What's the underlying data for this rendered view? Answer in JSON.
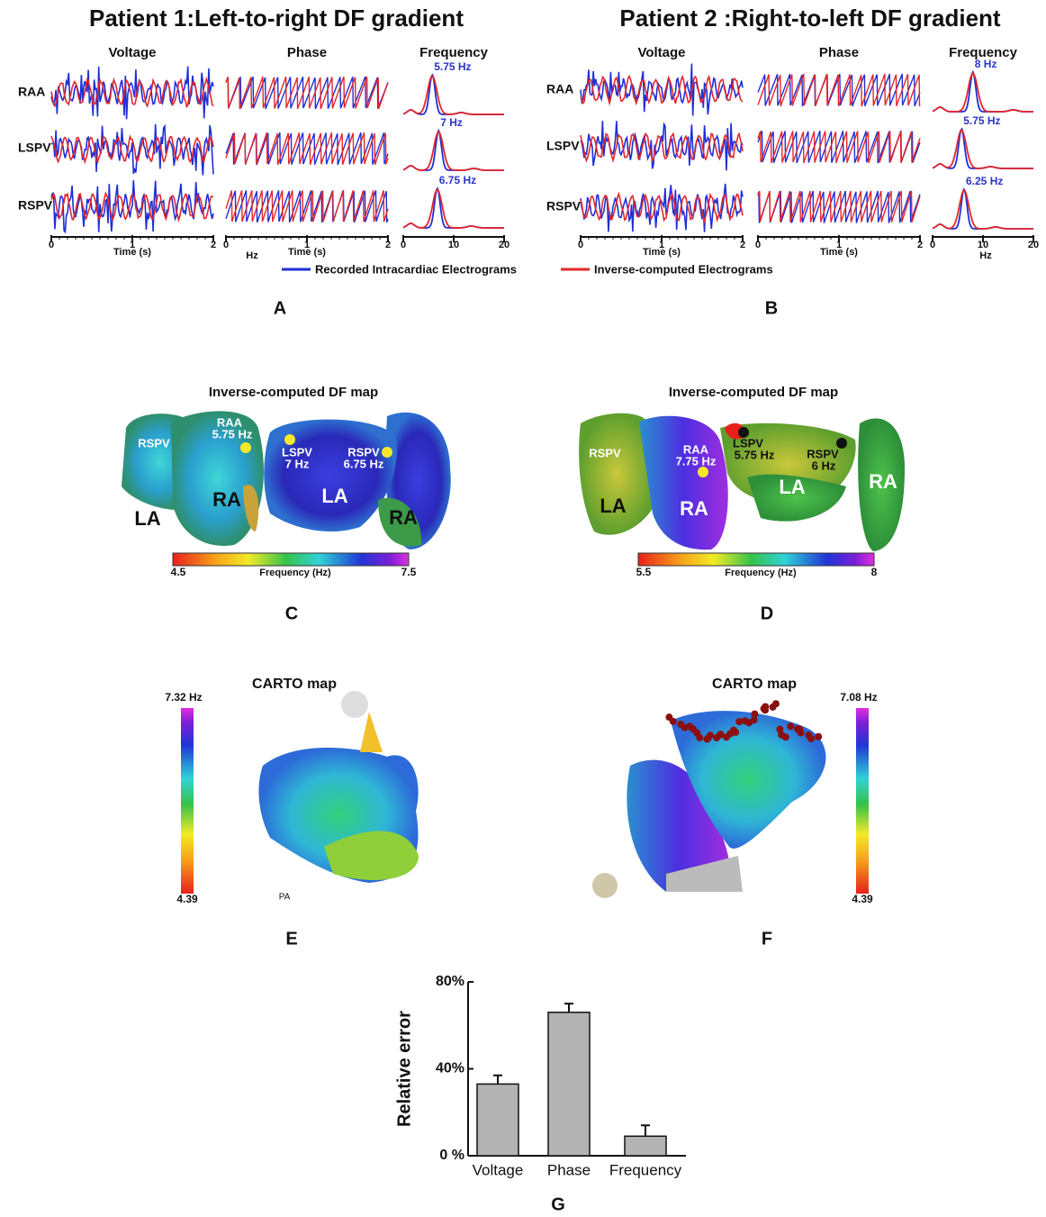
{
  "figure": {
    "patient1": {
      "title": "Patient 1:Left-to-right DF gradient",
      "letter": "A",
      "columns": [
        "Voltage",
        "Phase",
        "Frequency"
      ],
      "rows": [
        "RAA",
        "LSPV",
        "RSPV"
      ],
      "peaks": [
        5.75,
        7,
        6.75
      ],
      "peak_labels": [
        "5.75 Hz",
        "7 Hz",
        "6.75 Hz"
      ],
      "time_xlim": [
        0,
        2
      ],
      "time_xticks": [
        0,
        1,
        2
      ],
      "freq_xlim": [
        0,
        20
      ],
      "freq_xticks": [
        0,
        10,
        20
      ],
      "time_label": "Time (s)",
      "hz_label": "Hz"
    },
    "patient2": {
      "title": "Patient 2 :Right-to-left DF gradient",
      "letter": "B",
      "columns": [
        "Voltage",
        "Phase",
        "Frequency"
      ],
      "rows": [
        "RAA",
        "LSPV",
        "RSPV"
      ],
      "peaks": [
        8,
        5.75,
        6.25
      ],
      "peak_labels": [
        "8 Hz",
        "5.75 Hz",
        "6.25 Hz"
      ],
      "time_xlim": [
        0,
        2
      ],
      "time_xticks": [
        0,
        1,
        2
      ],
      "freq_xlim": [
        0,
        20
      ],
      "freq_xticks": [
        0,
        10,
        20
      ],
      "time_label": "Time (s)",
      "hz_label": "Hz"
    },
    "legend": [
      {
        "name": "Recorded Intracardiac Electrograms",
        "color": "#1f2fd6"
      },
      {
        "name": "Inverse-computed Electrograms",
        "color": "#e3262b"
      }
    ],
    "map_c": {
      "title": "Inverse-computed DF map",
      "letter": "C",
      "labels": [
        "RSPV",
        "RAA",
        "5.75 Hz",
        "LSPV",
        "7 Hz",
        "RSPV",
        "6.75 Hz",
        "LA",
        "RA",
        "LA",
        "RA"
      ],
      "colorbar": {
        "min": 4.5,
        "max": 7.5,
        "label": "Frequency (Hz)"
      }
    },
    "map_d": {
      "title": "Inverse-computed DF map",
      "letter": "D",
      "labels": [
        "RSPV",
        "RAA",
        "7.75 Hz",
        "LSPV",
        "5.75 Hz",
        "RSPV",
        "6 Hz",
        "LA",
        "RA",
        "LA",
        "RA"
      ],
      "colorbar": {
        "min": 5.5,
        "max": 8,
        "label": "Frequency (Hz)"
      }
    },
    "carto_e": {
      "title": "CARTO map",
      "letter": "E",
      "top_label": "7.32 Hz",
      "bottom_label": "4.39",
      "note": "PA"
    },
    "carto_f": {
      "title": "CARTO map",
      "letter": "F",
      "top_label": "7.08 Hz",
      "bottom_label": "4.39"
    },
    "letter_g": "G"
  },
  "chart_data": {
    "type": "bar",
    "y_label": "Relative error",
    "categories": [
      "Voltage",
      "Phase",
      "Frequency"
    ],
    "values": [
      33,
      66,
      9
    ],
    "errors": [
      4,
      4,
      5
    ],
    "color": "#b3b3b3",
    "ylim": [
      0,
      80
    ],
    "yticks": [
      {
        "value": 0,
        "label": "0 %"
      },
      {
        "value": 40,
        "label": "40%"
      },
      {
        "value": 80,
        "label": "80%"
      }
    ]
  }
}
